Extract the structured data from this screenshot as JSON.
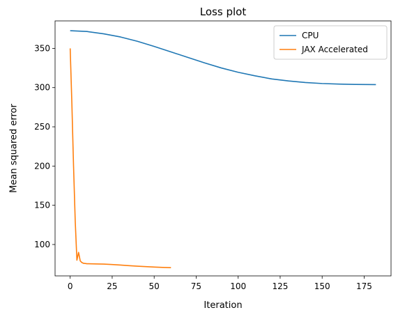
{
  "chart_data": {
    "type": "line",
    "title": "Loss plot",
    "xlabel": "Iteration",
    "ylabel": "Mean squared error",
    "xlim": [
      -9,
      191
    ],
    "ylim": [
      60,
      385
    ],
    "xticks": [
      0,
      25,
      50,
      75,
      100,
      125,
      150,
      175
    ],
    "yticks": [
      100,
      150,
      200,
      250,
      300,
      350
    ],
    "grid": false,
    "legend_position": "top-right",
    "series": [
      {
        "name": "CPU",
        "color": "#1f77b4",
        "x": [
          0,
          10,
          20,
          30,
          40,
          50,
          60,
          70,
          80,
          90,
          100,
          110,
          120,
          130,
          140,
          150,
          160,
          170,
          182
        ],
        "y": [
          372.5,
          371.5,
          368.5,
          364.5,
          359,
          352.5,
          345.5,
          338.5,
          331.5,
          325,
          319.5,
          315,
          311,
          308.5,
          306.5,
          305.2,
          304.5,
          304,
          303.8
        ]
      },
      {
        "name": "JAX Accelerated",
        "color": "#ff7f0e",
        "x": [
          0,
          1,
          2,
          3,
          4,
          5,
          6,
          7,
          8,
          9,
          10,
          15,
          20,
          25,
          30,
          35,
          40,
          45,
          50,
          55,
          60
        ],
        "y": [
          350,
          280,
          200,
          130,
          80,
          90,
          79,
          77,
          76,
          75.8,
          75.5,
          75.3,
          75,
          74.5,
          73.8,
          73,
          72.4,
          71.8,
          71.3,
          70.8,
          70.5
        ]
      }
    ]
  }
}
